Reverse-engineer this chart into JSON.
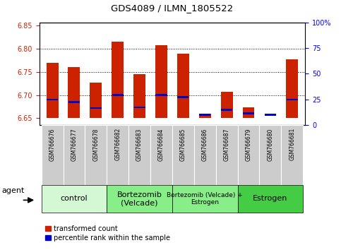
{
  "title": "GDS4089 / ILMN_1805522",
  "samples": [
    "GSM766676",
    "GSM766677",
    "GSM766678",
    "GSM766682",
    "GSM766683",
    "GSM766684",
    "GSM766685",
    "GSM766686",
    "GSM766687",
    "GSM766679",
    "GSM766680",
    "GSM766681"
  ],
  "red_values": [
    6.77,
    6.76,
    6.727,
    6.815,
    6.745,
    6.808,
    6.79,
    6.66,
    6.707,
    6.673,
    6.651,
    6.778
  ],
  "blue_values": [
    6.69,
    6.685,
    6.672,
    6.7,
    6.673,
    6.7,
    6.695,
    6.657,
    6.668,
    6.66,
    6.657,
    6.69
  ],
  "bar_bottom": 6.65,
  "ylim_left": [
    6.635,
    6.857
  ],
  "ylim_right": [
    0,
    100
  ],
  "yticks_left": [
    6.65,
    6.7,
    6.75,
    6.8,
    6.85
  ],
  "yticks_right": [
    0,
    25,
    50,
    75,
    100
  ],
  "group_configs": [
    {
      "label": "control",
      "start": 0,
      "end": 3,
      "color": "#d4f7d4",
      "fontsize": 8
    },
    {
      "label": "Bortezomib\n(Velcade)",
      "start": 3,
      "end": 6,
      "color": "#88ee88",
      "fontsize": 8
    },
    {
      "label": "Bortezomib (Velcade) +\nEstrogen",
      "start": 6,
      "end": 9,
      "color": "#88ee88",
      "fontsize": 6.5
    },
    {
      "label": "Estrogen",
      "start": 9,
      "end": 12,
      "color": "#44cc44",
      "fontsize": 8
    }
  ],
  "agent_label": "agent",
  "legend_red": "transformed count",
  "legend_blue": "percentile rank within the sample",
  "red_color": "#cc2200",
  "blue_color": "#0000cc",
  "bar_width": 0.55,
  "grid_dotted": [
    6.7,
    6.75,
    6.8
  ],
  "xtick_box_color": "#cccccc"
}
